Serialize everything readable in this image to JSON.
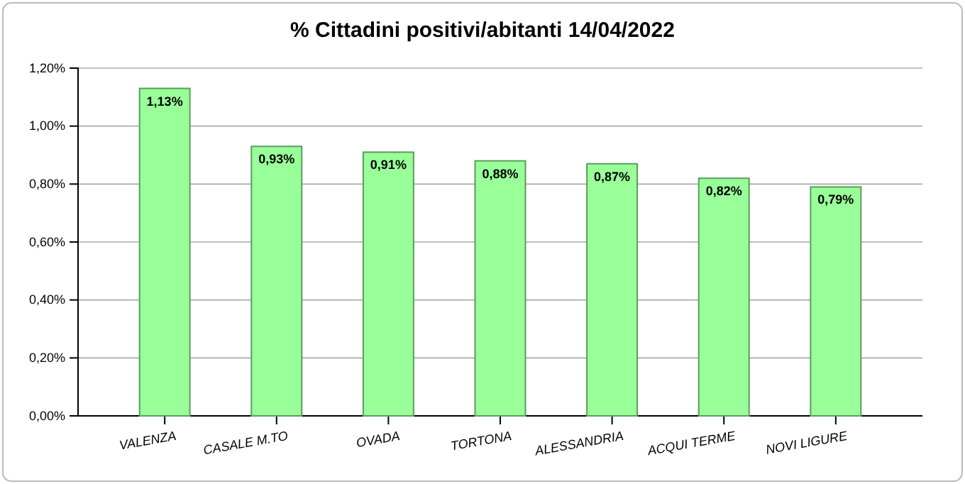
{
  "chart_data": {
    "type": "bar",
    "title": "% Cittadini positivi/abitanti 14/04/2022",
    "categories": [
      "VALENZA",
      "CASALE M.TO",
      "OVADA",
      "TORTONA",
      "ALESSANDRIA",
      "ACQUI TERME",
      "NOVI LIGURE"
    ],
    "values": [
      1.13,
      0.93,
      0.91,
      0.88,
      0.87,
      0.82,
      0.79
    ],
    "value_labels": [
      "1,13%",
      "0,93%",
      "0,91%",
      "0,88%",
      "0,87%",
      "0,82%",
      "0,79%"
    ],
    "color": "#99ff99",
    "ylim": [
      0,
      1.2
    ],
    "yticks": [
      {
        "value": 0,
        "label": "0,00%"
      },
      {
        "value": 0.2,
        "label": "0,20%"
      },
      {
        "value": 0.4,
        "label": "0,40%"
      },
      {
        "value": 0.6,
        "label": "0,60%"
      },
      {
        "value": 0.8,
        "label": "0,80%"
      },
      {
        "value": 1,
        "label": "1,00%"
      },
      {
        "value": 1.2,
        "label": "1,20%"
      }
    ],
    "grid": "y"
  }
}
